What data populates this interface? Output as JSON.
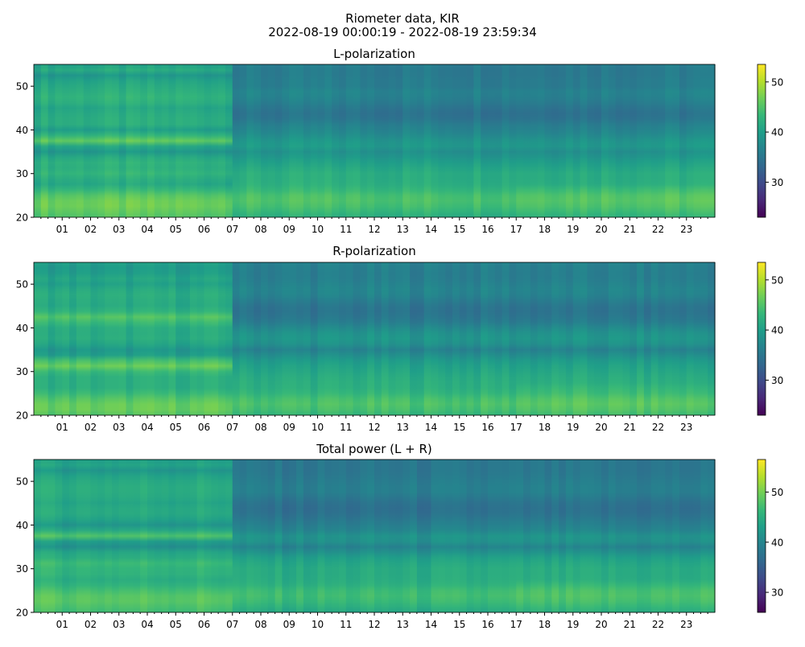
{
  "figure": {
    "title_line1": "Riometer data, KIR",
    "title_line2": "2022-08-19 00:00:19 - 2022-08-19 23:59:34"
  },
  "colormap": {
    "name": "viridis",
    "stops": [
      "#440154",
      "#482878",
      "#3e4a89",
      "#31688e",
      "#26828e",
      "#1f9e89",
      "#35b779",
      "#6ece58",
      "#b5de2b",
      "#fde725"
    ]
  },
  "chart_data": [
    {
      "type": "heatmap",
      "title": "L-polarization",
      "x_unit": "hour (UTC)",
      "xlim": [
        0,
        24
      ],
      "x_tick_labels": [
        "01",
        "02",
        "03",
        "04",
        "05",
        "06",
        "07",
        "08",
        "09",
        "10",
        "11",
        "12",
        "13",
        "14",
        "15",
        "16",
        "17",
        "18",
        "19",
        "20",
        "21",
        "22",
        "23"
      ],
      "ylim": [
        20,
        55
      ],
      "y_ticks": [
        20,
        30,
        40,
        50
      ],
      "colorbar": {
        "range": [
          23,
          53.5
        ],
        "ticks": [
          30,
          40,
          50
        ]
      },
      "regime_change_hour": 7,
      "profile_before": [
        [
          20,
          45
        ],
        [
          21.5,
          46
        ],
        [
          23,
          47
        ],
        [
          24.5,
          46
        ],
        [
          26,
          44
        ],
        [
          27,
          41
        ],
        [
          29,
          42
        ],
        [
          30,
          43
        ],
        [
          31,
          42
        ],
        [
          32,
          43
        ],
        [
          33,
          42
        ],
        [
          34,
          41
        ],
        [
          35.5,
          38
        ],
        [
          36.5,
          42
        ],
        [
          37.5,
          46
        ],
        [
          38.5,
          44
        ],
        [
          39.5,
          39
        ],
        [
          41,
          42
        ],
        [
          43,
          42
        ],
        [
          45,
          41
        ],
        [
          47,
          43
        ],
        [
          49,
          42
        ],
        [
          51,
          41
        ],
        [
          52.5,
          39
        ],
        [
          53.5,
          42
        ],
        [
          55,
          40
        ]
      ],
      "profile_after": [
        [
          20,
          42
        ],
        [
          22,
          44
        ],
        [
          23.5,
          45
        ],
        [
          25,
          44.5
        ],
        [
          26.5,
          43
        ],
        [
          28,
          42
        ],
        [
          30,
          42
        ],
        [
          31.5,
          41
        ],
        [
          33,
          40
        ],
        [
          34,
          39
        ],
        [
          35.5,
          38
        ],
        [
          36.5,
          40
        ],
        [
          37.5,
          39
        ],
        [
          38.5,
          38
        ],
        [
          40,
          37
        ],
        [
          41,
          36.5
        ],
        [
          42.5,
          35
        ],
        [
          44,
          34.5
        ],
        [
          45.5,
          35.5
        ],
        [
          47,
          36.5
        ],
        [
          48.5,
          37
        ],
        [
          50,
          36
        ],
        [
          51.5,
          36
        ],
        [
          53,
          35.5
        ],
        [
          55,
          36
        ]
      ]
    },
    {
      "type": "heatmap",
      "title": "R-polarization",
      "x_unit": "hour (UTC)",
      "xlim": [
        0,
        24
      ],
      "x_tick_labels": [
        "01",
        "02",
        "03",
        "04",
        "05",
        "06",
        "07",
        "08",
        "09",
        "10",
        "11",
        "12",
        "13",
        "14",
        "15",
        "16",
        "17",
        "18",
        "19",
        "20",
        "21",
        "22",
        "23"
      ],
      "ylim": [
        20,
        55
      ],
      "y_ticks": [
        20,
        30,
        40,
        50
      ],
      "colorbar": {
        "range": [
          23,
          53.5
        ],
        "ticks": [
          30,
          40,
          50
        ]
      },
      "regime_change_hour": 7,
      "profile_before": [
        [
          20,
          45
        ],
        [
          21.5,
          46.5
        ],
        [
          23,
          46
        ],
        [
          24.5,
          44
        ],
        [
          26,
          42
        ],
        [
          27.5,
          42
        ],
        [
          29,
          42
        ],
        [
          30.5,
          44
        ],
        [
          31.5,
          47
        ],
        [
          32.5,
          44
        ],
        [
          33.5,
          40
        ],
        [
          35,
          39
        ],
        [
          36.5,
          41
        ],
        [
          38,
          42
        ],
        [
          39.5,
          41
        ],
        [
          41,
          43
        ],
        [
          42.5,
          45
        ],
        [
          44,
          42
        ],
        [
          45.5,
          41
        ],
        [
          47,
          42
        ],
        [
          48.5,
          41.5
        ],
        [
          50,
          40
        ],
        [
          51.5,
          41
        ],
        [
          53,
          39
        ],
        [
          55,
          40
        ]
      ],
      "profile_after": [
        [
          20,
          43
        ],
        [
          22,
          45
        ],
        [
          23.5,
          44.5
        ],
        [
          25,
          43
        ],
        [
          26.5,
          42
        ],
        [
          28,
          42
        ],
        [
          30,
          41
        ],
        [
          32,
          40
        ],
        [
          33,
          39
        ],
        [
          34.5,
          37
        ],
        [
          35.5,
          36
        ],
        [
          36.5,
          39
        ],
        [
          38,
          39
        ],
        [
          39.5,
          38
        ],
        [
          41,
          36
        ],
        [
          42.5,
          35
        ],
        [
          44,
          34.5
        ],
        [
          45.5,
          35
        ],
        [
          47,
          36.5
        ],
        [
          48.5,
          37
        ],
        [
          50,
          36.5
        ],
        [
          51.5,
          36
        ],
        [
          53,
          36
        ],
        [
          55,
          36.5
        ]
      ]
    },
    {
      "type": "heatmap",
      "title": "Total power (L + R)",
      "x_unit": "hour (UTC)",
      "xlim": [
        0,
        24
      ],
      "x_tick_labels": [
        "01",
        "02",
        "03",
        "04",
        "05",
        "06",
        "07",
        "08",
        "09",
        "10",
        "11",
        "12",
        "13",
        "14",
        "15",
        "16",
        "17",
        "18",
        "19",
        "20",
        "21",
        "22",
        "23"
      ],
      "ylim": [
        20,
        55
      ],
      "y_ticks": [
        20,
        30,
        40,
        50
      ],
      "colorbar": {
        "range": [
          26,
          56.5
        ],
        "ticks": [
          30,
          40,
          50
        ]
      },
      "regime_change_hour": 7,
      "profile_before": [
        [
          20,
          47
        ],
        [
          21.5,
          48
        ],
        [
          23,
          49
        ],
        [
          24.5,
          48
        ],
        [
          26,
          46
        ],
        [
          27.5,
          45
        ],
        [
          29,
          46
        ],
        [
          30.5,
          46
        ],
        [
          31.5,
          47
        ],
        [
          32.5,
          45
        ],
        [
          34,
          44
        ],
        [
          35.5,
          40
        ],
        [
          36.5,
          44
        ],
        [
          37.5,
          48
        ],
        [
          38.5,
          45
        ],
        [
          40,
          42
        ],
        [
          41.5,
          44
        ],
        [
          43,
          45
        ],
        [
          45,
          44
        ],
        [
          47,
          45
        ],
        [
          49,
          45
        ],
        [
          51,
          44
        ],
        [
          52.5,
          42
        ],
        [
          53.5,
          44
        ],
        [
          55,
          43
        ]
      ],
      "profile_after": [
        [
          20,
          44
        ],
        [
          22,
          46
        ],
        [
          23.5,
          47
        ],
        [
          25,
          46.5
        ],
        [
          26.5,
          45
        ],
        [
          28,
          44.5
        ],
        [
          30,
          44.5
        ],
        [
          32,
          43.5
        ],
        [
          33,
          42.5
        ],
        [
          34.5,
          40
        ],
        [
          35.5,
          39
        ],
        [
          36.5,
          42
        ],
        [
          37.5,
          41.5
        ],
        [
          38.5,
          40
        ],
        [
          40,
          39
        ],
        [
          41.5,
          38
        ],
        [
          43,
          37
        ],
        [
          44.5,
          37
        ],
        [
          46,
          38
        ],
        [
          47.5,
          39
        ],
        [
          49,
          39
        ],
        [
          50.5,
          38.5
        ],
        [
          52,
          38
        ],
        [
          53.5,
          38
        ],
        [
          55,
          38
        ]
      ]
    }
  ]
}
